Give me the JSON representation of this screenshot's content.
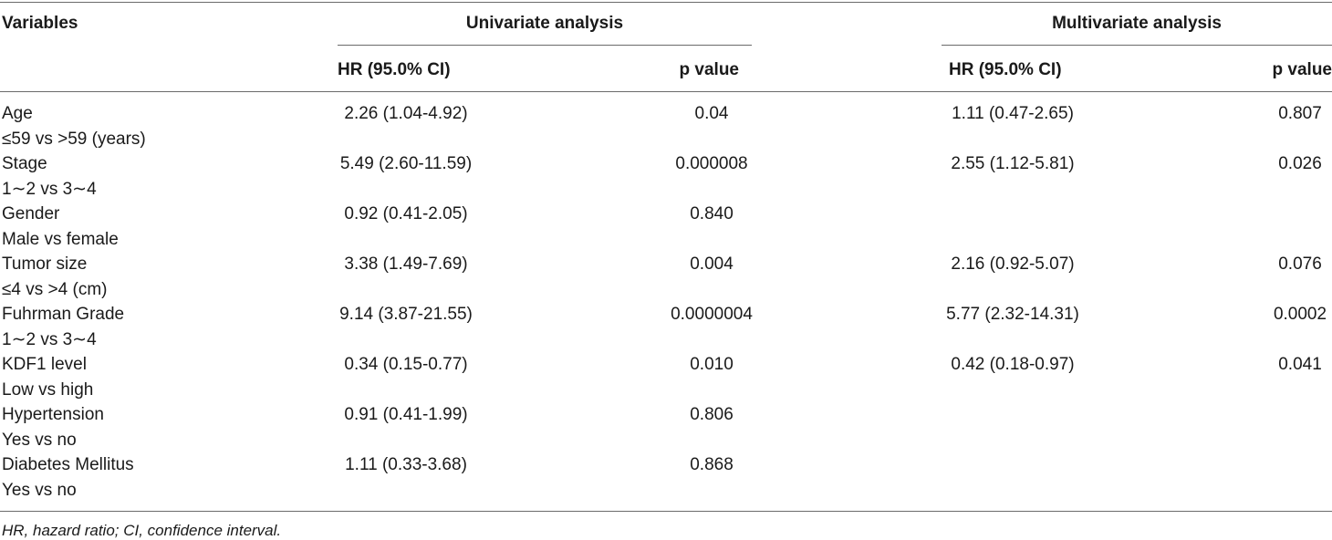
{
  "table": {
    "headers": {
      "variables": "Variables",
      "univariate": "Univariate analysis",
      "multivariate": "Multivariate analysis",
      "hr": "HR (95.0% CI)",
      "p": "p value"
    },
    "rows": [
      {
        "name": "Age",
        "sub": "≤59 vs >59 (years)",
        "uni_hr": "2.26 (1.04-4.92)",
        "uni_p": "0.04",
        "multi_hr": "1.11 (0.47-2.65)",
        "multi_p": "0.807"
      },
      {
        "name": "Stage",
        "sub": "1∼2 vs 3∼4",
        "uni_hr": "5.49 (2.60-11.59)",
        "uni_p": "0.000008",
        "multi_hr": "2.55 (1.12-5.81)",
        "multi_p": "0.026"
      },
      {
        "name": "Gender",
        "sub": "Male vs female",
        "uni_hr": "0.92 (0.41-2.05)",
        "uni_p": "0.840",
        "multi_hr": "",
        "multi_p": ""
      },
      {
        "name": "Tumor size",
        "sub": "≤4 vs >4 (cm)",
        "uni_hr": "3.38 (1.49-7.69)",
        "uni_p": "0.004",
        "multi_hr": "2.16 (0.92-5.07)",
        "multi_p": "0.076"
      },
      {
        "name": "Fuhrman Grade",
        "sub": "1∼2 vs 3∼4",
        "uni_hr": "9.14 (3.87-21.55)",
        "uni_p": "0.0000004",
        "multi_hr": "5.77 (2.32-14.31)",
        "multi_p": "0.0002"
      },
      {
        "name": "KDF1 level",
        "sub": "Low vs high",
        "uni_hr": "0.34 (0.15-0.77)",
        "uni_p": "0.010",
        "multi_hr": "0.42 (0.18-0.97)",
        "multi_p": "0.041"
      },
      {
        "name": "Hypertension",
        "sub": "Yes vs no",
        "uni_hr": "0.91 (0.41-1.99)",
        "uni_p": "0.806",
        "multi_hr": "",
        "multi_p": ""
      },
      {
        "name": "Diabetes Mellitus",
        "sub": "Yes vs no",
        "uni_hr": "1.11 (0.33-3.68)",
        "uni_p": "0.868",
        "multi_hr": "",
        "multi_p": ""
      }
    ],
    "footnote": "HR, hazard ratio; CI, confidence interval."
  }
}
